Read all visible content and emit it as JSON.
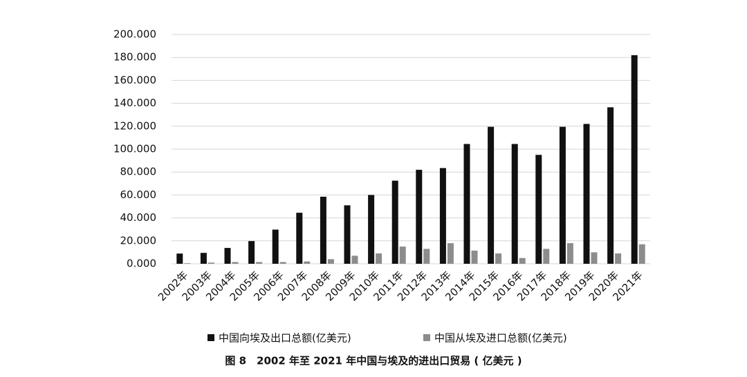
{
  "chart_data": {
    "type": "bar",
    "categories": [
      "2002年",
      "2003年",
      "2004年",
      "2005年",
      "2006年",
      "2007年",
      "2008年",
      "2009年",
      "2010年",
      "2011年",
      "2012年",
      "2013年",
      "2014年",
      "2015年",
      "2016年",
      "2017年",
      "2018年",
      "2019年",
      "2020年",
      "2021年"
    ],
    "series": [
      {
        "name": "中国向埃及出口总额(亿美元)",
        "color": "#111111",
        "values": [
          8.9,
          9.5,
          13.8,
          19.8,
          29.8,
          44.5,
          58.5,
          51,
          60,
          72.5,
          82,
          83.5,
          104.5,
          119.5,
          104.5,
          95,
          119.5,
          122,
          136.5,
          182
        ]
      },
      {
        "name": "中国从埃及进口总额(亿美元)",
        "color": "#8c8c8c",
        "values": [
          0.5,
          1,
          1.5,
          1.5,
          1.5,
          2,
          4,
          7,
          9,
          15,
          13,
          18,
          11.5,
          9,
          5,
          13,
          18,
          10,
          9,
          17
        ]
      }
    ],
    "ylim": [
      0,
      200
    ],
    "yticks": [
      {
        "value": 0,
        "label": "0.000"
      },
      {
        "value": 20,
        "label": "20.000"
      },
      {
        "value": 40,
        "label": "40.000"
      },
      {
        "value": 60,
        "label": "60.000"
      },
      {
        "value": 80,
        "label": "80.000"
      },
      {
        "value": 100,
        "label": "100.000"
      },
      {
        "value": 120,
        "label": "120.000"
      },
      {
        "value": 140,
        "label": "140.000"
      },
      {
        "value": 160,
        "label": "160.000"
      },
      {
        "value": 180,
        "label": "180.000"
      },
      {
        "value": 200,
        "label": "200.000"
      }
    ],
    "grid": true,
    "legend": "bottom",
    "caption": "图 8　2002 年至 2021 年中国与埃及的进出口贸易 ( 亿美元 )"
  }
}
